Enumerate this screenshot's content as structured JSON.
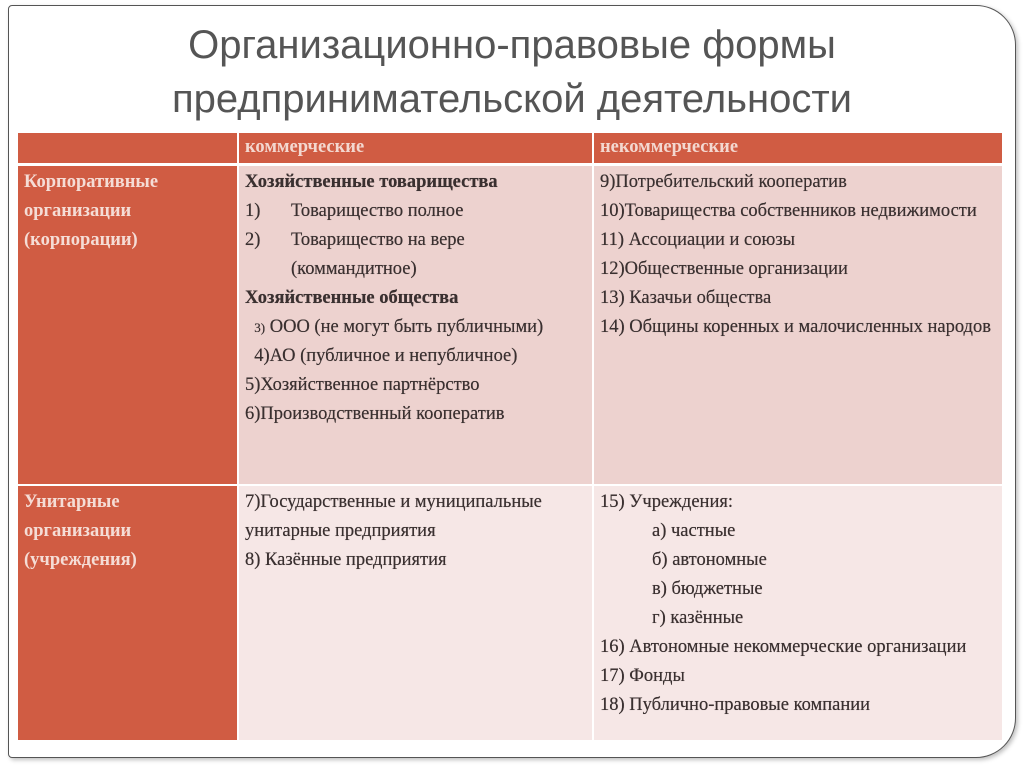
{
  "slide": {
    "title_line1": "Организационно-правовые формы",
    "title_line2": "предпринимательской деятельности"
  },
  "colors": {
    "header": "#d05c43",
    "row1": "#edd2cf",
    "row2": "#f6e7e6"
  },
  "table": {
    "headers": [
      "",
      "коммерческие",
      "некоммерческие"
    ],
    "rows": [
      {
        "label": [
          "Корпоративные",
          "организации",
          "(корпорации)"
        ],
        "commercial": {
          "heading1": "Хозяйственные товарищества",
          "item1_num": "1)",
          "item1": "Товарищество полное",
          "item2_num": "2)",
          "item2": "Товарищество на вере (коммандитное)",
          "heading2": "Хозяйственные общества",
          "item3_num": "3)",
          "item3": "ООО (не могут быть публичными)",
          "item4": "4)АО (публичное и непубличное)",
          "item5": "5)Хозяйственное партнёрство",
          "item6": "6)Производственный кооператив"
        },
        "noncommercial": [
          "9)Потребительский кооператив",
          "10)Товарищества собственников недвижимости",
          "11) Ассоциации и союзы",
          "12)Общественные организации",
          "13) Казачьи общества",
          "14) Общины коренных и малочисленных народов"
        ]
      },
      {
        "label": [
          "Унитарные",
          "организации",
          "(учреждения)"
        ],
        "commercial": [
          "7)Государственные и муниципальные унитарные предприятия",
          "8) Казённые предприятия"
        ],
        "noncommercial": {
          "item15": "15) Учреждения:",
          "sub": [
            "а) частные",
            "б) автономные",
            "в) бюджетные",
            "г) казённые"
          ],
          "item16": "16) Автономные некоммерческие организации",
          "item17": "17) Фонды",
          "item18": "18) Публично-правовые компании"
        }
      }
    ]
  }
}
